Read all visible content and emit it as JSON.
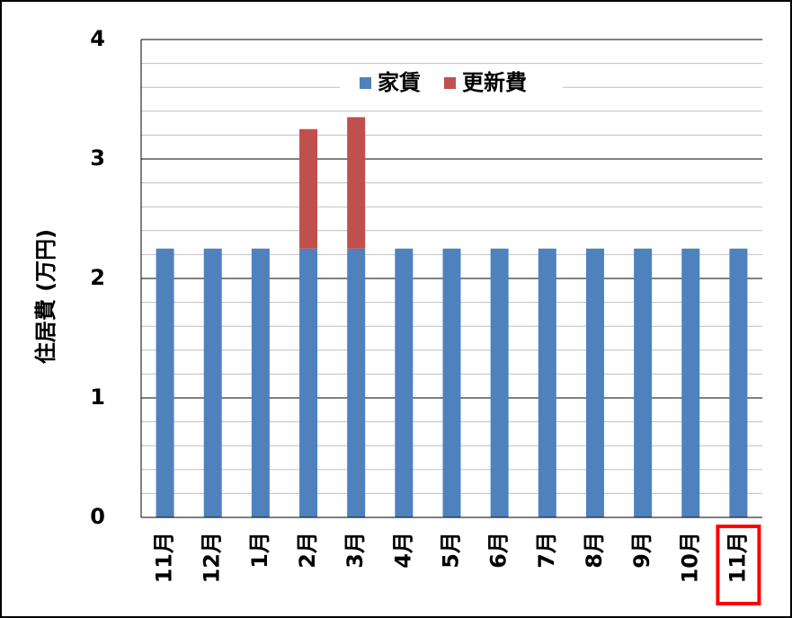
{
  "chart_data": {
    "type": "stacked_bar",
    "y_label": "住居費 (万円)",
    "categories": [
      "11月",
      "12月",
      "1月",
      "2月",
      "3月",
      "4月",
      "5月",
      "6月",
      "7月",
      "8月",
      "9月",
      "10月",
      "11月"
    ],
    "series": [
      {
        "name": "家賃",
        "color": "#4f81bd",
        "values": [
          2.25,
          2.25,
          2.25,
          2.25,
          2.25,
          2.25,
          2.25,
          2.25,
          2.25,
          2.25,
          2.25,
          2.25,
          2.25
        ]
      },
      {
        "name": "更新費",
        "color": "#c0504d",
        "values": [
          0,
          0,
          0,
          1.0,
          1.1,
          0,
          0,
          0,
          0,
          0,
          0,
          0,
          0
        ]
      }
    ],
    "ylim": [
      0,
      4
    ],
    "yticks": [
      0,
      1,
      2,
      3,
      4
    ],
    "minor_yticks": [
      0.2,
      0.4,
      0.6,
      0.8,
      1.2,
      1.4,
      1.6,
      1.8,
      2.2,
      2.4,
      2.6,
      2.8,
      3.2,
      3.4,
      3.6,
      3.8
    ],
    "grid": true,
    "legend": "top",
    "highlighted_category": 12
  }
}
